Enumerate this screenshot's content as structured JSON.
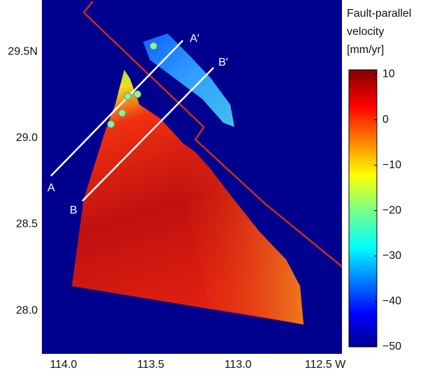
{
  "map": {
    "colorbar_title": [
      "Fault-parallel",
      "velocity",
      "[mm/yr]"
    ],
    "lon_lim": [
      114.132,
      112.412
    ],
    "lat_lim": [
      27.75,
      29.8
    ],
    "lon_ticks": [
      {
        "value": 114,
        "label": "114.0"
      },
      {
        "value": 113.5,
        "label": "113.5"
      },
      {
        "value": 113,
        "label": "113.0"
      },
      {
        "value": 112.5,
        "label": "112.5 W"
      }
    ],
    "lat_ticks": [
      {
        "value": 29.5,
        "label": "29.5N"
      },
      {
        "value": 29,
        "label": "29.0"
      },
      {
        "value": 28.5,
        "label": "28.5"
      },
      {
        "value": 28,
        "label": "28.0"
      }
    ],
    "colorbar_lim": [
      -50,
      11
    ],
    "colorbar_ticks": [
      10,
      0,
      {
        "value": -10,
        "label": "−10"
      },
      {
        "value": -20,
        "label": "−20"
      },
      {
        "value": -30,
        "label": "−30"
      },
      {
        "value": -40,
        "label": "−40"
      },
      {
        "value": -50,
        "label": "−50"
      }
    ],
    "profiles": [
      {
        "start": "A",
        "end": "A′"
      },
      {
        "start": "B",
        "end": "B′"
      }
    ]
  }
}
